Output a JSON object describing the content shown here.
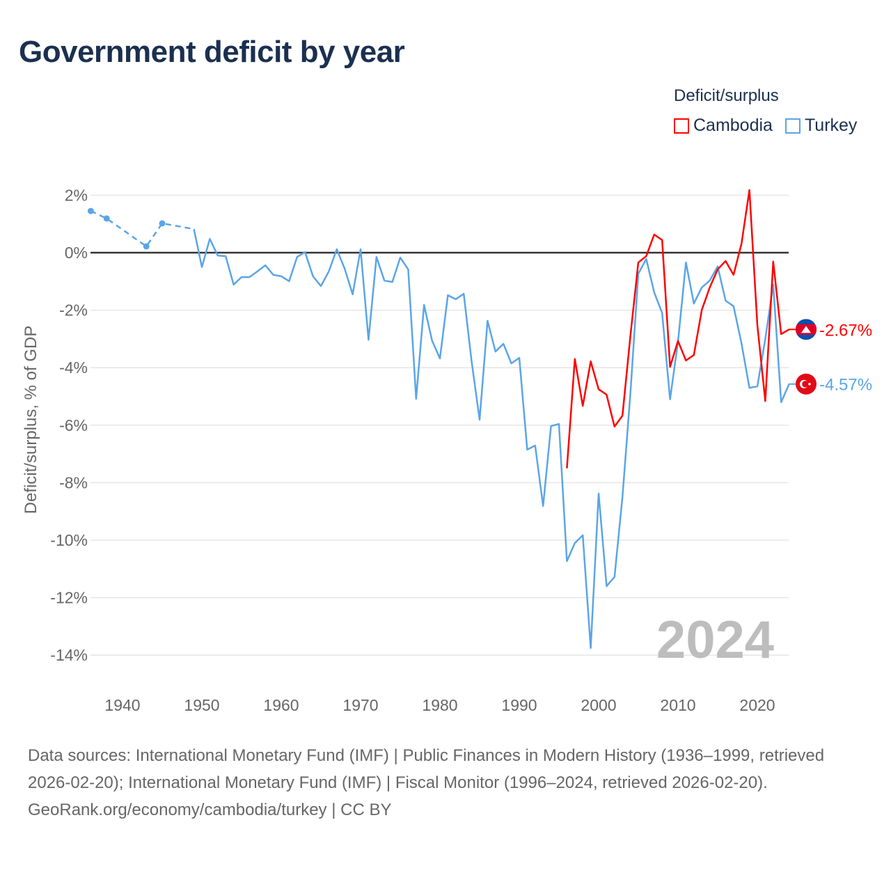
{
  "title": "Government deficit by year",
  "legend": {
    "title": "Deficit/surplus",
    "items": [
      {
        "label": "Cambodia",
        "color": "#ff0000"
      },
      {
        "label": "Turkey",
        "color": "#5aa5e8"
      }
    ]
  },
  "chart_data": {
    "type": "line",
    "title": "Government deficit by year",
    "xlabel": "",
    "ylabel": "Deficit/surplus, % of GDP",
    "xlim": [
      1936,
      2024
    ],
    "ylim": [
      -14,
      2
    ],
    "x_ticks": [
      1940,
      1950,
      1960,
      1970,
      1980,
      1990,
      2000,
      2010,
      2020
    ],
    "y_ticks": [
      2,
      0,
      -2,
      -4,
      -6,
      -8,
      -10,
      -12,
      -14
    ],
    "y_tick_labels": [
      "2%",
      "0%",
      "-2%",
      "-4%",
      "-6%",
      "-8%",
      "-10%",
      "-12%",
      "-14%"
    ],
    "grid": true,
    "year_watermark": "2024",
    "series": [
      {
        "name": "Turkey",
        "color": "#5aa5e8",
        "end_label": "-4.57%",
        "flag": "turkey-flag",
        "sparse_points": {
          "x": [
            1936,
            1938,
            1943,
            1945,
            1949
          ],
          "y": [
            1.45,
            1.19,
            0.22,
            1.02,
            0.82
          ]
        },
        "x": [
          1949,
          1950,
          1951,
          1952,
          1953,
          1954,
          1955,
          1956,
          1957,
          1958,
          1959,
          1960,
          1961,
          1962,
          1963,
          1964,
          1965,
          1966,
          1967,
          1968,
          1969,
          1970,
          1971,
          1972,
          1973,
          1974,
          1975,
          1976,
          1977,
          1978,
          1979,
          1980,
          1981,
          1982,
          1983,
          1984,
          1985,
          1986,
          1987,
          1988,
          1989,
          1990,
          1991,
          1992,
          1993,
          1994,
          1995,
          1996,
          1997,
          1998,
          1999,
          2000,
          2001,
          2002,
          2003,
          2004,
          2005,
          2006,
          2007,
          2008,
          2009,
          2010,
          2011,
          2012,
          2013,
          2014,
          2015,
          2016,
          2017,
          2018,
          2019,
          2020,
          2021,
          2022,
          2023,
          2024
        ],
        "y": [
          0.82,
          -0.5,
          0.48,
          -0.1,
          -0.12,
          -1.11,
          -0.85,
          -0.85,
          -0.65,
          -0.44,
          -0.77,
          -0.82,
          -0.99,
          -0.15,
          0.02,
          -0.82,
          -1.16,
          -0.65,
          0.12,
          -0.56,
          -1.45,
          0.12,
          -3.03,
          -0.15,
          -0.97,
          -1.02,
          -0.17,
          -0.58,
          -5.08,
          -1.82,
          -3.05,
          -3.68,
          -1.48,
          -1.62,
          -1.43,
          -3.8,
          -5.81,
          -2.37,
          -3.44,
          -3.17,
          -3.85,
          -3.66,
          -6.85,
          -6.71,
          -8.81,
          -6.03,
          -5.96,
          -10.73,
          -10.1,
          -9.83,
          -13.75,
          -8.38,
          -11.6,
          -11.28,
          -8.5,
          -4.9,
          -0.73,
          -0.22,
          -1.38,
          -2.1,
          -5.1,
          -3.1,
          -0.34,
          -1.77,
          -1.21,
          -0.97,
          -0.48,
          -1.67,
          -1.86,
          -3.15,
          -4.7,
          -4.65,
          -3.0,
          -1.11,
          -5.2,
          -4.57
        ]
      },
      {
        "name": "Cambodia",
        "color": "#ff0000",
        "end_label": "-2.67%",
        "flag": "cambodia-flag",
        "x": [
          1996,
          1997,
          1998,
          1999,
          2000,
          2001,
          2002,
          2003,
          2004,
          2005,
          2006,
          2007,
          2008,
          2009,
          2010,
          2011,
          2012,
          2013,
          2014,
          2015,
          2016,
          2017,
          2018,
          2019,
          2020,
          2021,
          2022,
          2023,
          2024
        ],
        "y": [
          -7.5,
          -3.7,
          -5.33,
          -3.78,
          -4.75,
          -4.94,
          -6.05,
          -5.67,
          -2.9,
          -0.34,
          -0.12,
          0.63,
          0.44,
          -3.97,
          -3.07,
          -3.75,
          -3.56,
          -1.99,
          -1.21,
          -0.58,
          -0.29,
          -0.77,
          0.31,
          2.18,
          -2.52,
          -5.16,
          -0.31,
          -2.83,
          -2.67
        ]
      }
    ]
  },
  "footer": {
    "sources": "Data sources: International Monetary Fund (IMF) | Public Finances in Modern History (1936–1999, retrieved 2026-02-20); International Monetary Fund (IMF) | Fiscal Monitor (1996–2024, retrieved 2026-02-20).",
    "credit": "GeoRank.org/economy/cambodia/turkey | CC BY"
  }
}
